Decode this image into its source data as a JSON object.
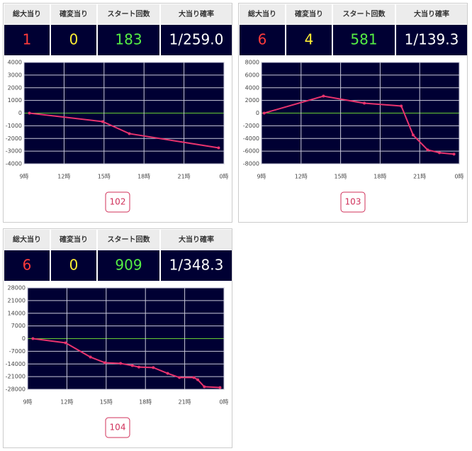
{
  "panels": [
    {
      "stats": {
        "headers": [
          "総大当り",
          "確変当り",
          "スタート回数",
          "大当り確率"
        ],
        "values": [
          "1",
          "0",
          "183",
          "1/259.0"
        ]
      },
      "button": "102"
    },
    {
      "stats": {
        "headers": [
          "総大当り",
          "確変当り",
          "スタート回数",
          "大当り確率"
        ],
        "values": [
          "6",
          "4",
          "581",
          "1/139.3"
        ]
      },
      "button": "103"
    },
    {
      "stats": {
        "headers": [
          "総大当り",
          "確変当り",
          "スタート回数",
          "大当り確率"
        ],
        "values": [
          "6",
          "0",
          "909",
          "1/348.3"
        ]
      },
      "button": "104"
    }
  ],
  "chart_data": [
    {
      "type": "line",
      "x": [
        9.4,
        14.9,
        16.9,
        23.6
      ],
      "series": [
        {
          "color": "#e8336d",
          "values": [
            0,
            -670,
            -1620,
            -2740
          ]
        }
      ],
      "xlim": [
        9,
        24
      ],
      "xticks": [
        {
          "value": 9,
          "label": "9時"
        },
        {
          "value": 12,
          "label": "12時"
        },
        {
          "value": 15,
          "label": "15時"
        },
        {
          "value": 18,
          "label": "18時"
        },
        {
          "value": 21,
          "label": "21時"
        },
        {
          "value": 24,
          "label": "0時"
        }
      ],
      "ylim": [
        -4000,
        4000
      ],
      "yticks": [
        4000,
        3000,
        2000,
        1000,
        0,
        -1000,
        -2000,
        -3000,
        -4000
      ],
      "grid": true
    },
    {
      "type": "line",
      "x": [
        9.2,
        13.7,
        16.8,
        19.6,
        20.5,
        21.6,
        22.5,
        23.6
      ],
      "series": [
        {
          "color": "#e8336d",
          "values": [
            0,
            2680,
            1560,
            1120,
            -3460,
            -5800,
            -6250,
            -6480
          ]
        }
      ],
      "xlim": [
        9,
        24
      ],
      "xticks": [
        {
          "value": 9,
          "label": "9時"
        },
        {
          "value": 12,
          "label": "12時"
        },
        {
          "value": 15,
          "label": "15時"
        },
        {
          "value": 18,
          "label": "18時"
        },
        {
          "value": 21,
          "label": "21時"
        },
        {
          "value": 24,
          "label": "0時"
        }
      ],
      "ylim": [
        -8000,
        8000
      ],
      "yticks": [
        8000,
        6000,
        4000,
        2000,
        0,
        -2000,
        -4000,
        -6000,
        -8000
      ],
      "grid": true
    },
    {
      "type": "line",
      "x": [
        9.4,
        11.9,
        13.8,
        14.9,
        16.1,
        17.0,
        17.5,
        18.6,
        19.7,
        20.6,
        21.7,
        22.0,
        22.5,
        23.7
      ],
      "series": [
        {
          "color": "#e8336d",
          "values": [
            0,
            -2350,
            -10200,
            -13300,
            -13700,
            -14900,
            -15700,
            -16000,
            -19200,
            -21500,
            -21500,
            -22700,
            -26600,
            -27000
          ]
        }
      ],
      "xlim": [
        9,
        24
      ],
      "xticks": [
        {
          "value": 9,
          "label": "9時"
        },
        {
          "value": 12,
          "label": "12時"
        },
        {
          "value": 15,
          "label": "15時"
        },
        {
          "value": 18,
          "label": "18時"
        },
        {
          "value": 21,
          "label": "21時"
        },
        {
          "value": 24,
          "label": "0時"
        }
      ],
      "ylim": [
        -28000,
        28000
      ],
      "yticks": [
        28000,
        21000,
        14000,
        7000,
        0,
        -7000,
        -14000,
        -21000,
        -28000
      ],
      "grid": true
    }
  ]
}
